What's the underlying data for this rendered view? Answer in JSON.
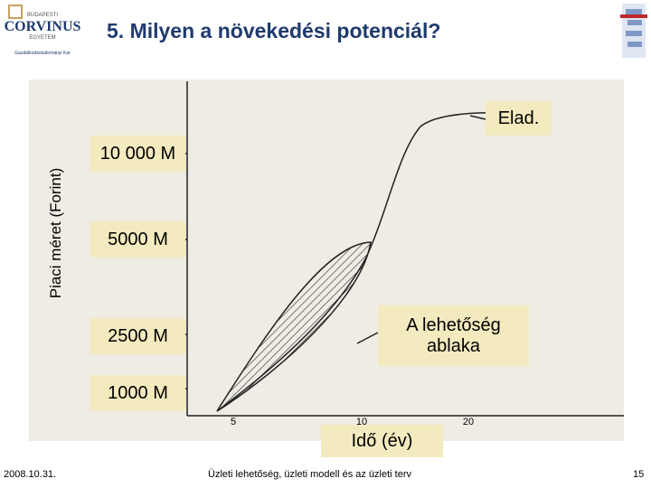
{
  "header": {
    "logo_top": "BUDAPESTI",
    "logo_name": "CORVINUS",
    "logo_bottom": "EGYETEM",
    "faculty": "Gazdálkodástudományi Kar",
    "title": "5. Milyen a növekedési potenciál?"
  },
  "figure": {
    "y_axis_label": "Piaci méret (Forint)",
    "y_labels": [
      "10 000 M",
      "5000 M",
      "2500 M",
      "1000 M"
    ],
    "x_labels": [
      "5",
      "10",
      "20"
    ],
    "x_axis_label": "Idő (év)",
    "curve_end_label": "Elad.",
    "window_label": "A lehetőség ablaka"
  },
  "footer": {
    "date": "2008.10.31.",
    "subject": "Üzleti lehetőség, üzleti modell és az üzleti terv",
    "page": "15"
  }
}
